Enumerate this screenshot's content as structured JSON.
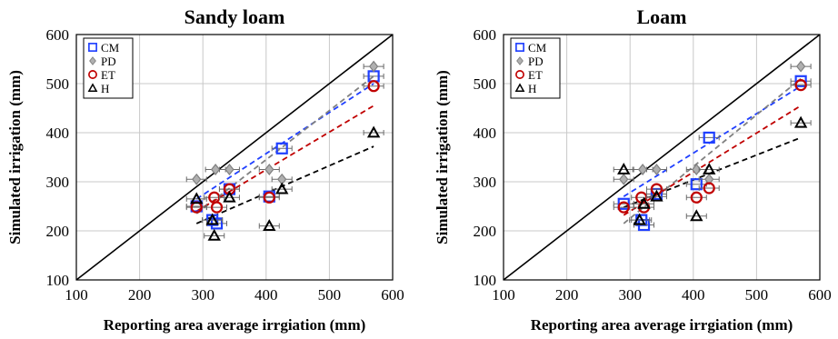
{
  "figure": {
    "xlabel": "Reporting area average irrgiation (mm)",
    "ylabel": "Simulated irrigation (mm)"
  },
  "legend": [
    {
      "key": "CM",
      "label": "CM",
      "color": "#1f3fff",
      "marker": "square"
    },
    {
      "key": "PD",
      "label": "PD",
      "color": "#808080",
      "marker": "diamond"
    },
    {
      "key": "ET",
      "label": "ET",
      "color": "#c00000",
      "marker": "circle"
    },
    {
      "key": "H",
      "label": "H",
      "color": "#000000",
      "marker": "triangle"
    }
  ],
  "chart_data": [
    {
      "type": "scatter",
      "title": "Sandy  loam",
      "xlabel": "Reporting area average irrgiation (mm)",
      "ylabel": "Simulated irrigation (mm)",
      "xlim": [
        100,
        600
      ],
      "ylim": [
        100,
        600
      ],
      "xticks": [
        100,
        200,
        300,
        400,
        500,
        600
      ],
      "yticks": [
        100,
        200,
        300,
        400,
        500,
        600
      ],
      "grid": true,
      "legend_position": "top-left",
      "one_to_one_line": true,
      "series": [
        {
          "name": "CM",
          "points": [
            [
              290,
              250
            ],
            [
              315,
              222
            ],
            [
              322,
              215
            ],
            [
              342,
              285
            ],
            [
              405,
              270
            ],
            [
              425,
              368
            ],
            [
              570,
              515
            ]
          ],
          "trend": [
            [
              290,
              265
            ],
            [
              570,
              500
            ]
          ]
        },
        {
          "name": "PD",
          "points": [
            [
              290,
              305
            ],
            [
              320,
              325
            ],
            [
              342,
              325
            ],
            [
              405,
              325
            ],
            [
              425,
              305
            ],
            [
              570,
              535
            ]
          ],
          "trend": [
            [
              290,
              235
            ],
            [
              570,
              515
            ]
          ]
        },
        {
          "name": "ET",
          "points": [
            [
              290,
              248
            ],
            [
              318,
              268
            ],
            [
              322,
              248
            ],
            [
              342,
              285
            ],
            [
              405,
              268
            ],
            [
              570,
              495
            ]
          ],
          "trend": [
            [
              290,
              240
            ],
            [
              570,
              455
            ]
          ]
        },
        {
          "name": "H",
          "points": [
            [
              290,
              265
            ],
            [
              315,
              222
            ],
            [
              318,
              190
            ],
            [
              342,
              268
            ],
            [
              405,
              210
            ],
            [
              425,
              285
            ],
            [
              570,
              400
            ]
          ],
          "trend": [
            [
              290,
              215
            ],
            [
              570,
              372
            ]
          ]
        }
      ]
    },
    {
      "type": "scatter",
      "title": "Loam",
      "xlabel": "Reporting area average irrgiation (mm)",
      "ylabel": "Simulated irrigation (mm)",
      "xlim": [
        100,
        600
      ],
      "ylim": [
        100,
        600
      ],
      "xticks": [
        100,
        200,
        300,
        400,
        500,
        600
      ],
      "yticks": [
        100,
        200,
        300,
        400,
        500,
        600
      ],
      "grid": true,
      "legend_position": "top-left",
      "one_to_one_line": true,
      "series": [
        {
          "name": "CM",
          "points": [
            [
              290,
              255
            ],
            [
              318,
              222
            ],
            [
              322,
              212
            ],
            [
              342,
              275
            ],
            [
              405,
              295
            ],
            [
              425,
              390
            ],
            [
              570,
              505
            ]
          ],
          "trend": [
            [
              290,
              270
            ],
            [
              570,
              495
            ]
          ]
        },
        {
          "name": "PD",
          "points": [
            [
              290,
              305
            ],
            [
              320,
              325
            ],
            [
              342,
              325
            ],
            [
              405,
              325
            ],
            [
              425,
              305
            ],
            [
              570,
              535
            ]
          ],
          "trend": [
            [
              290,
              215
            ],
            [
              570,
              510
            ]
          ]
        },
        {
          "name": "ET",
          "points": [
            [
              290,
              248
            ],
            [
              318,
              268
            ],
            [
              322,
              248
            ],
            [
              342,
              285
            ],
            [
              405,
              268
            ],
            [
              425,
              287
            ],
            [
              570,
              497
            ]
          ],
          "trend": [
            [
              290,
              232
            ],
            [
              570,
              455
            ]
          ]
        },
        {
          "name": "H",
          "points": [
            [
              290,
              325
            ],
            [
              315,
              222
            ],
            [
              322,
              255
            ],
            [
              342,
              270
            ],
            [
              405,
              230
            ],
            [
              425,
              325
            ],
            [
              570,
              420
            ]
          ],
          "trend": [
            [
              290,
              248
            ],
            [
              570,
              390
            ]
          ]
        }
      ]
    }
  ]
}
